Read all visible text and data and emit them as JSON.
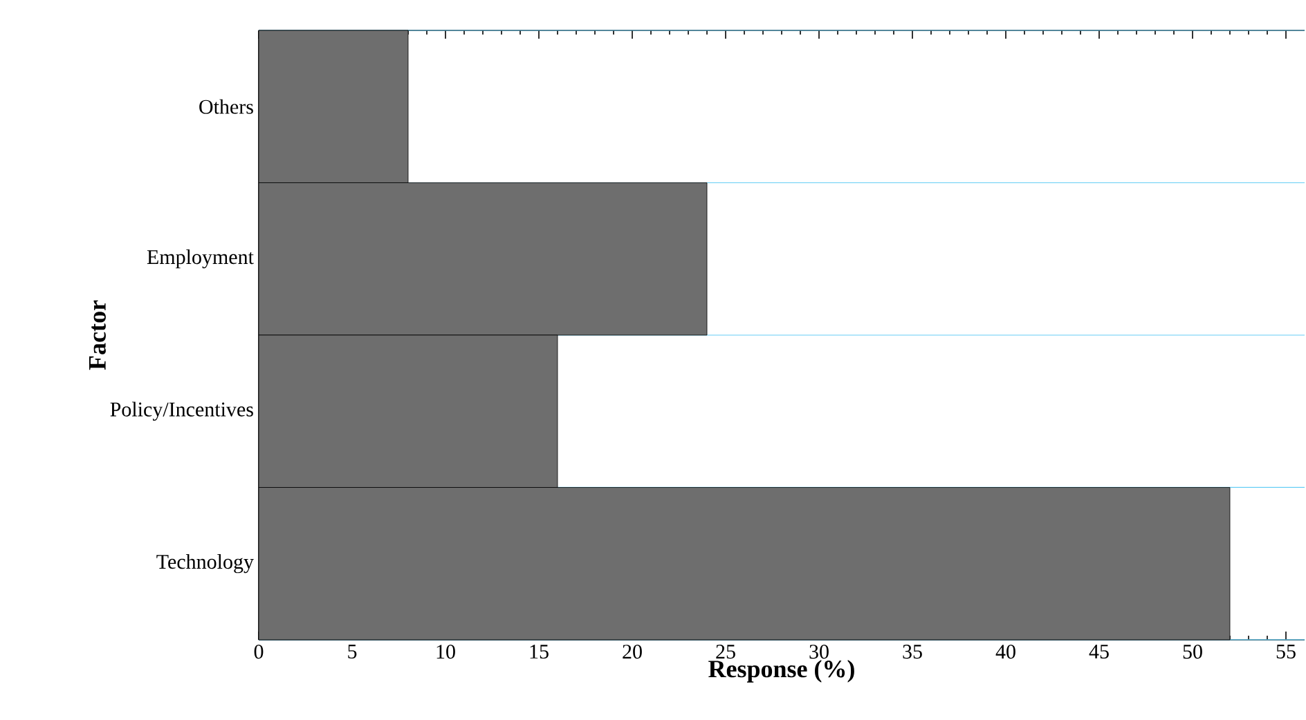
{
  "chart_data": {
    "type": "bar",
    "orientation": "horizontal",
    "xlabel": "Response (%)",
    "ylabel": "Factor",
    "categories": [
      "Others",
      "Employment",
      "Policy/Incentives",
      "Technology"
    ],
    "values": [
      8,
      24,
      16,
      52
    ],
    "color": "#6e6e6e",
    "xlim": [
      0,
      56
    ],
    "xticks": [
      0,
      5,
      10,
      15,
      20,
      25,
      30,
      35,
      40,
      45,
      50,
      55
    ],
    "grid": "y"
  }
}
